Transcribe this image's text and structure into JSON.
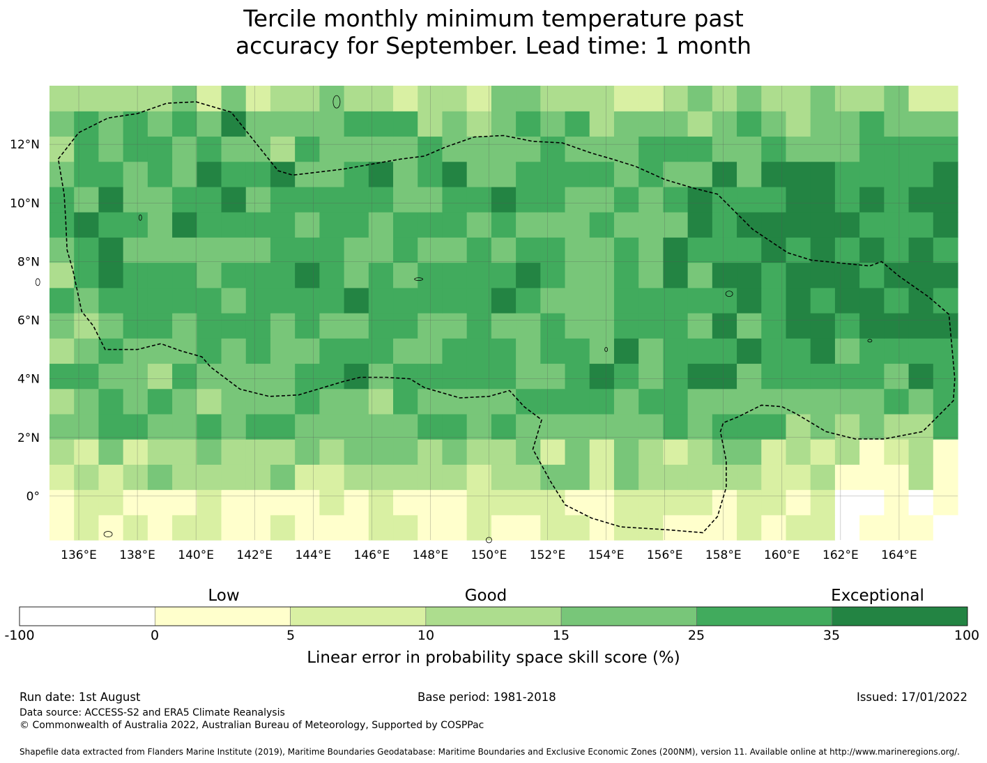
{
  "title_line1": "Tercile monthly minimum temperature past",
  "title_line2": "accuracy for September. Lead time: 1 month",
  "map": {
    "lon_range": [
      135.0,
      166.0
    ],
    "lat_range": [
      -1.5,
      14.0
    ],
    "lon_ticks": [
      {
        "value": 136,
        "label": "136°E"
      },
      {
        "value": 138,
        "label": "138°E"
      },
      {
        "value": 140,
        "label": "140°E"
      },
      {
        "value": 142,
        "label": "142°E"
      },
      {
        "value": 144,
        "label": "144°E"
      },
      {
        "value": 146,
        "label": "146°E"
      },
      {
        "value": 148,
        "label": "148°E"
      },
      {
        "value": 150,
        "label": "150°E"
      },
      {
        "value": 152,
        "label": "152°E"
      },
      {
        "value": 154,
        "label": "154°E"
      },
      {
        "value": 156,
        "label": "156°E"
      },
      {
        "value": 158,
        "label": "158°E"
      },
      {
        "value": 160,
        "label": "160°E"
      },
      {
        "value": 162,
        "label": "162°E"
      },
      {
        "value": 164,
        "label": "164°E"
      }
    ],
    "lat_ticks": [
      {
        "value": 12,
        "label": "12°N"
      },
      {
        "value": 10,
        "label": "10°N"
      },
      {
        "value": 8,
        "label": "8°N"
      },
      {
        "value": 6,
        "label": "6°N"
      },
      {
        "value": 4,
        "label": "4°N"
      },
      {
        "value": 2,
        "label": "2°N"
      },
      {
        "value": 0,
        "label": "0°"
      }
    ],
    "colors": {
      "class_neg": "#ffffff",
      "class_0_5": "#ffffcc",
      "class_5_10": "#d9f0a3",
      "class_10_15": "#addd8e",
      "class_15_25": "#78c679",
      "class_25_35": "#41ab5d",
      "class_35_100": "#238443",
      "boundary": "#000000"
    }
  },
  "colorbar": {
    "categories": [
      {
        "label": "Low"
      },
      {
        "label": "Good"
      },
      {
        "label": "Exceptional"
      }
    ],
    "ticks": [
      "-100",
      "0",
      "5",
      "10",
      "15",
      "25",
      "35",
      "100"
    ],
    "label": "Linear error in probability space skill score (%)"
  },
  "footer": {
    "run_date": "Run date: 1st August",
    "base_period": "Base period: 1981-2018",
    "issued": "Issued: 17/01/2022",
    "data_source": "Data source: ACCESS-S2 and ERA5 Climate Reanalysis",
    "copyright": "© Commonwealth of Australia 2022, Australian Bureau of Meteorology, Supported by COSPPac",
    "shapefile": "Shapefile data extracted from Flanders Marine Institute (2019), Maritime Boundaries Geodatabase: Maritime Boundaries and Exclusive Economic Zones (200NM), version 11. Available online at http://www.marineregions.org/."
  }
}
